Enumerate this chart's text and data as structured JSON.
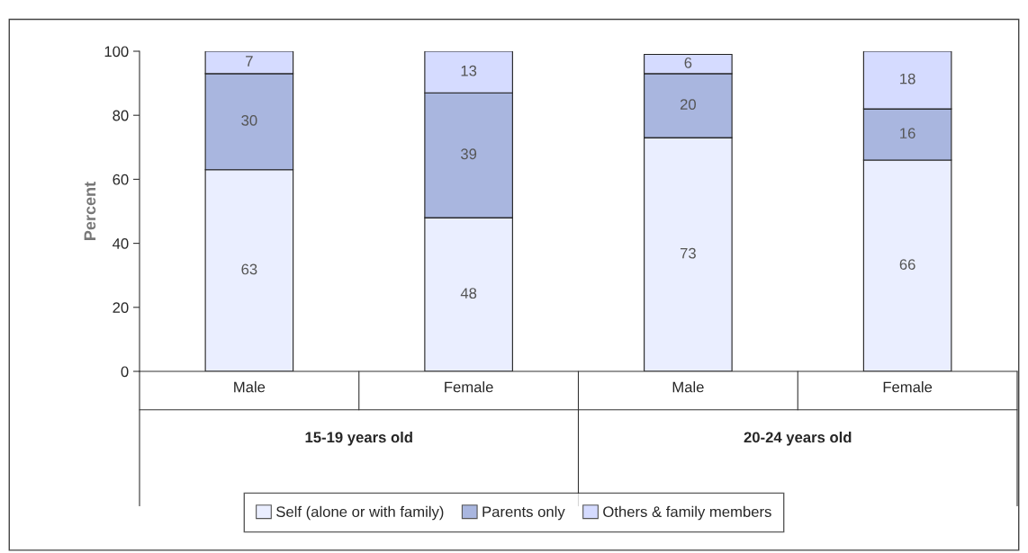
{
  "chart_data": {
    "type": "bar",
    "stacked": true,
    "ylabel": "Percent",
    "categories": [
      "Male",
      "Female",
      "Male",
      "Female"
    ],
    "series": [
      {
        "name": "Self (alone or with family)",
        "color": "#eaeeff",
        "values": [
          63,
          48,
          73,
          66
        ]
      },
      {
        "name": "Parents only",
        "color": "#a9b6df",
        "values": [
          30,
          39,
          20,
          16
        ]
      },
      {
        "name": "Others & family members",
        "color": "#d5dbff",
        "values": [
          7,
          13,
          6,
          18
        ]
      }
    ],
    "annotations": [
      "15-19 years old",
      "20-24 years old"
    ],
    "ylim": [
      0,
      100
    ],
    "yticks": [
      0,
      20,
      40,
      60,
      80,
      100
    ],
    "data_labels": true,
    "legend": "bottom",
    "grid": false
  }
}
